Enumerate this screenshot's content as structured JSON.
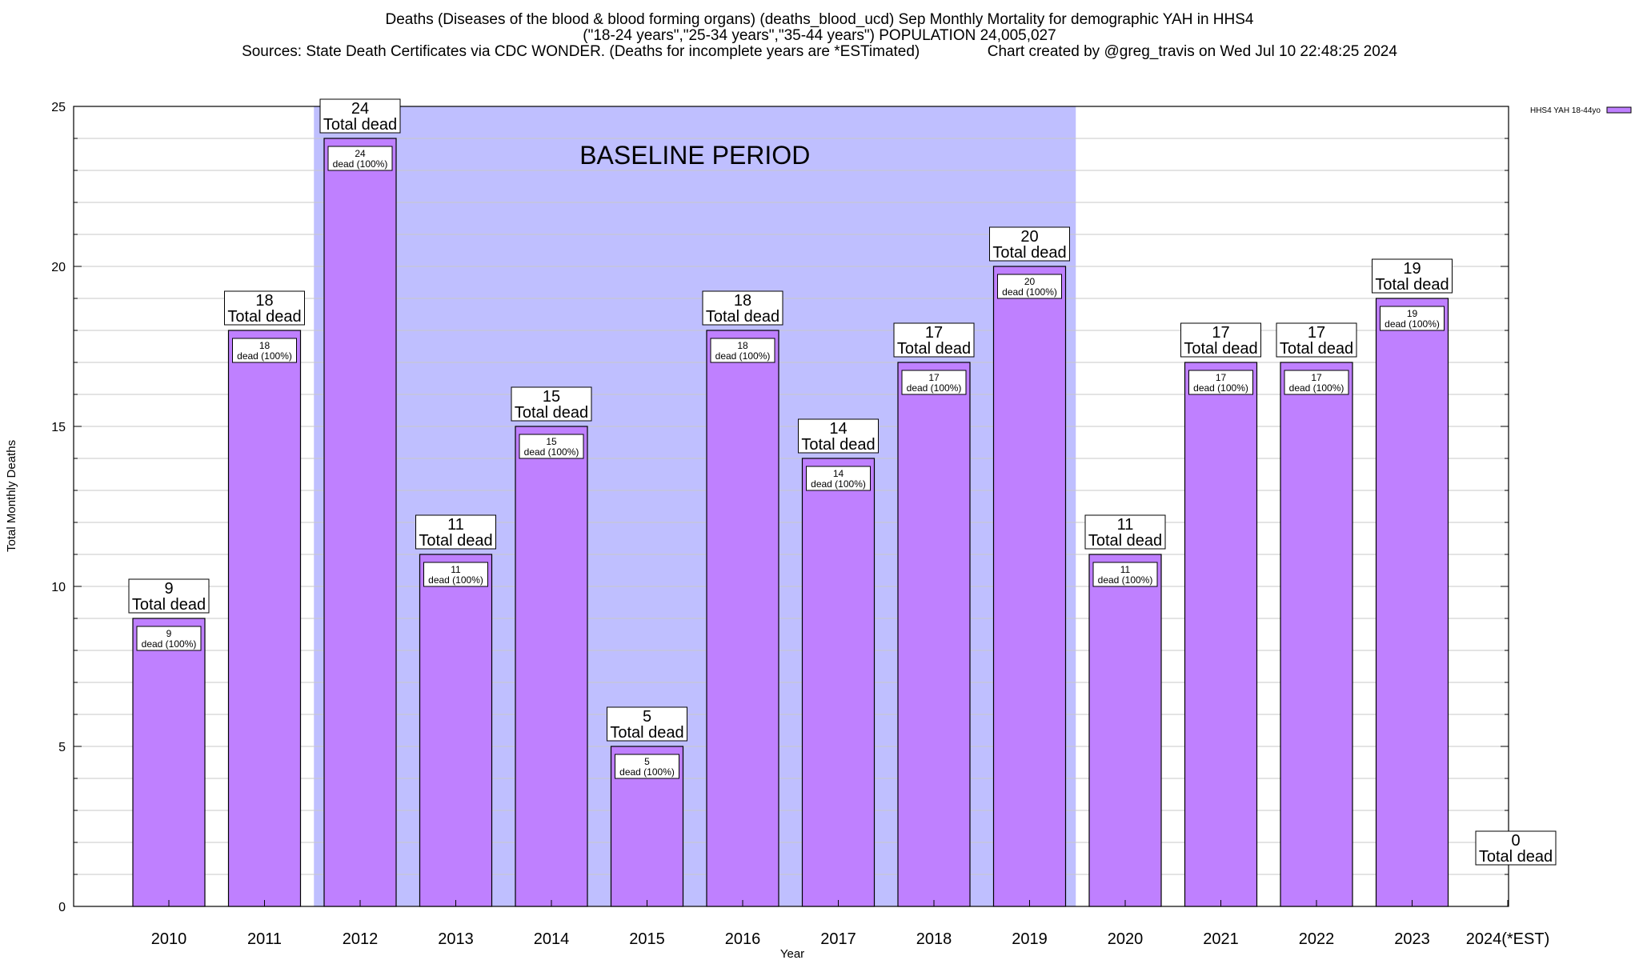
{
  "titles": {
    "line1": "Deaths (Diseases of the blood & blood forming organs) (deaths_blood_ucd) Sep Monthly Mortality for demographic YAH in HHS4",
    "line2": "(\"18-24 years\",\"25-34 years\",\"35-44 years\") POPULATION 24,005,027",
    "line3": "Sources: State Death Certificates via CDC WONDER. (Deaths for incomplete years are *ESTimated)                Chart created by @greg_travis on Wed Jul 10 22:48:25 2024"
  },
  "chart_data": {
    "type": "bar",
    "categories": [
      "2010",
      "2011",
      "2012",
      "2013",
      "2014",
      "2015",
      "2016",
      "2017",
      "2018",
      "2019",
      "2020",
      "2021",
      "2022",
      "2023",
      "2024(*EST)"
    ],
    "series": [
      {
        "name": "HHS4 YAH 18-44yo",
        "values": [
          9,
          18,
          24,
          11,
          15,
          5,
          18,
          14,
          17,
          20,
          11,
          17,
          17,
          19,
          0
        ]
      }
    ],
    "xlabel": "Year",
    "ylabel": "Total Monthly Deaths",
    "ylim": [
      0,
      25
    ],
    "yticks": [
      0,
      5,
      10,
      15,
      20,
      25
    ],
    "grid": true,
    "legend_position": "top-right",
    "total_label_suffix": "Total dead",
    "bar_label_suffix": "dead (100%)",
    "baseline": {
      "label": "BASELINE PERIOD",
      "from": "2012",
      "to": "2019"
    },
    "colors": {
      "bar": "#bf80ff",
      "baseline": "#bfbfff",
      "grid": "#c8c8c8"
    }
  }
}
